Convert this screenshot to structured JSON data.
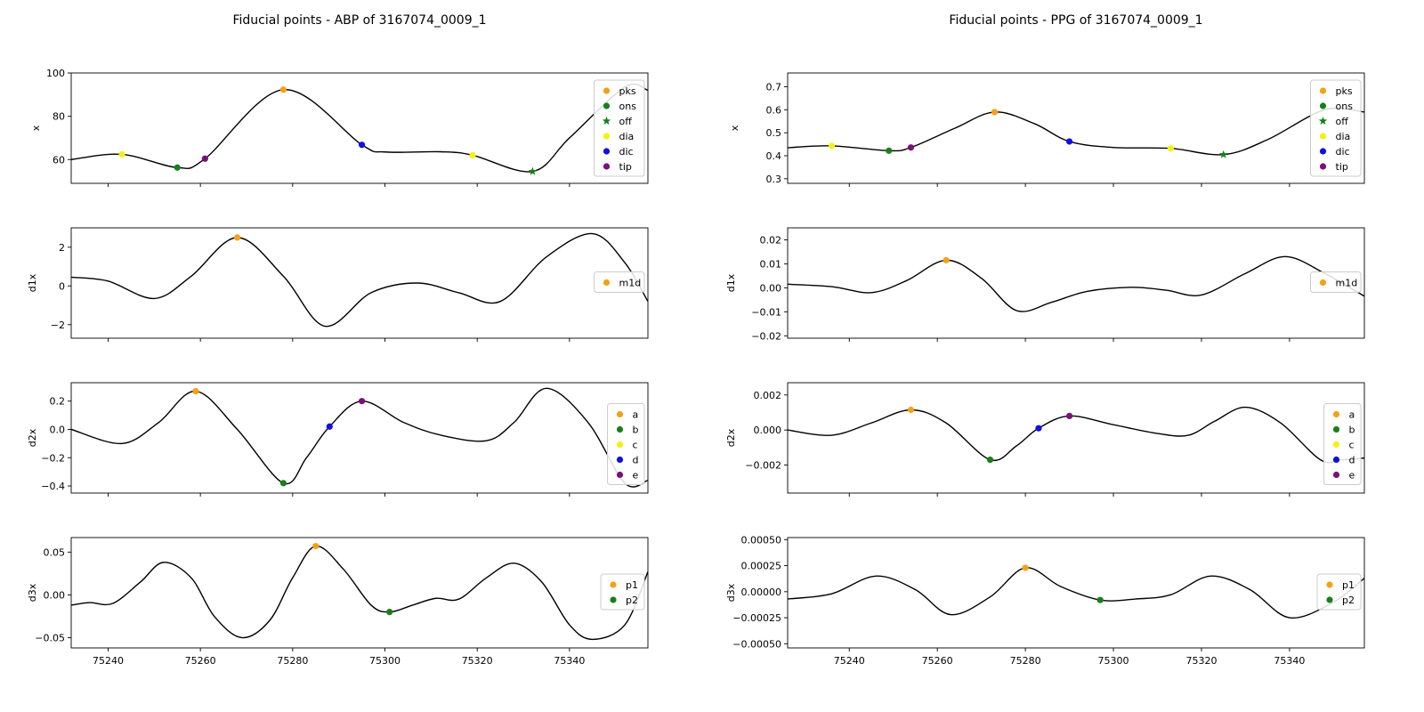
{
  "chart_data": [
    {
      "type": "line",
      "title": "Fiducial points - ABP of 3167074_0009_1",
      "ylabel": "x",
      "xlim": [
        75232,
        75357
      ],
      "ylim": [
        49,
        100
      ],
      "yticks": [
        60,
        80,
        100
      ],
      "xticks": [
        75240,
        75260,
        75280,
        75300,
        75320,
        75340
      ],
      "show_xticklabels": false,
      "curve": [
        [
          75232,
          60
        ],
        [
          75243,
          62.4
        ],
        [
          75255,
          56.3
        ],
        [
          75261,
          60.4
        ],
        [
          75278,
          92.3
        ],
        [
          75295,
          66.8
        ],
        [
          75300,
          63.5
        ],
        [
          75312,
          63.6
        ],
        [
          75319,
          62
        ],
        [
          75332,
          54.5
        ],
        [
          75340,
          70
        ],
        [
          75352,
          93.5
        ],
        [
          75357,
          92
        ]
      ],
      "points": [
        {
          "name": "pks",
          "color": "#f5a015",
          "marker": "circle",
          "x": 75278,
          "y": 92.3
        },
        {
          "name": "ons",
          "color": "#1a7f1a",
          "marker": "circle",
          "x": 75255,
          "y": 56.3
        },
        {
          "name": "off",
          "color": "#1a7f1a",
          "marker": "star",
          "x": 75332,
          "y": 54.5
        },
        {
          "name": "dia",
          "color": "#f2f212",
          "marker": "circle",
          "x": 75243,
          "y": 62.4
        },
        {
          "name": "dia",
          "color": "#f2f212",
          "marker": "circle",
          "x": 75319,
          "y": 62
        },
        {
          "name": "dic",
          "color": "#1010e0",
          "marker": "circle",
          "x": 75295,
          "y": 66.8
        },
        {
          "name": "tip",
          "color": "#7a107a",
          "marker": "circle",
          "x": 75261,
          "y": 60.4
        }
      ],
      "legend": [
        {
          "label": "pks",
          "color": "#f5a015",
          "marker": "circle"
        },
        {
          "label": "ons",
          "color": "#1a7f1a",
          "marker": "circle"
        },
        {
          "label": "off",
          "color": "#1a7f1a",
          "marker": "star"
        },
        {
          "label": "dia",
          "color": "#f2f212",
          "marker": "circle"
        },
        {
          "label": "dic",
          "color": "#1010e0",
          "marker": "circle"
        },
        {
          "label": "tip",
          "color": "#7a107a",
          "marker": "circle"
        }
      ]
    },
    {
      "type": "line",
      "title": "",
      "ylabel": "d1x",
      "xlim": [
        75232,
        75357
      ],
      "ylim": [
        -2.7,
        3
      ],
      "yticks": [
        -2,
        0,
        2
      ],
      "xticks": [
        75240,
        75260,
        75280,
        75300,
        75320,
        75340
      ],
      "show_xticklabels": false,
      "curve": [
        [
          75232,
          0.45
        ],
        [
          75240,
          0.25
        ],
        [
          75250,
          -0.65
        ],
        [
          75258,
          0.5
        ],
        [
          75268,
          2.5
        ],
        [
          75278,
          0.5
        ],
        [
          75287,
          -2.08
        ],
        [
          75297,
          -0.35
        ],
        [
          75307,
          0.15
        ],
        [
          75316,
          -0.35
        ],
        [
          75325,
          -0.8
        ],
        [
          75335,
          1.5
        ],
        [
          75345,
          2.7
        ],
        [
          75352,
          1.2
        ],
        [
          75357,
          -0.8
        ]
      ],
      "points": [
        {
          "name": "m1d",
          "color": "#f5a015",
          "marker": "circle",
          "x": 75268,
          "y": 2.5
        }
      ],
      "legend": [
        {
          "label": "m1d",
          "color": "#f5a015",
          "marker": "circle"
        }
      ]
    },
    {
      "type": "line",
      "title": "",
      "ylabel": "d2x",
      "xlim": [
        75232,
        75357
      ],
      "ylim": [
        -0.45,
        0.33
      ],
      "yticks": [
        -0.4,
        -0.2,
        0.0,
        0.2
      ],
      "xticks": [
        75240,
        75260,
        75280,
        75300,
        75320,
        75340
      ],
      "show_xticklabels": false,
      "curve": [
        [
          75232,
          0.0
        ],
        [
          75243,
          -0.1
        ],
        [
          75251,
          0.05
        ],
        [
          75259,
          0.27
        ],
        [
          75268,
          0.0
        ],
        [
          75278,
          -0.38
        ],
        [
          75283,
          -0.2
        ],
        [
          75288,
          0.02
        ],
        [
          75295,
          0.2
        ],
        [
          75304,
          0.05
        ],
        [
          75312,
          -0.04
        ],
        [
          75322,
          -0.08
        ],
        [
          75328,
          0.05
        ],
        [
          75335,
          0.29
        ],
        [
          75344,
          0.05
        ],
        [
          75352,
          -0.38
        ],
        [
          75357,
          -0.36
        ]
      ],
      "points": [
        {
          "name": "a",
          "color": "#f5a015",
          "marker": "circle",
          "x": 75259,
          "y": 0.27
        },
        {
          "name": "b",
          "color": "#1a7f1a",
          "marker": "circle",
          "x": 75278,
          "y": -0.38
        },
        {
          "name": "d",
          "color": "#1010e0",
          "marker": "circle",
          "x": 75288,
          "y": 0.02
        },
        {
          "name": "e",
          "color": "#7a107a",
          "marker": "circle",
          "x": 75295,
          "y": 0.2
        }
      ],
      "legend": [
        {
          "label": "a",
          "color": "#f5a015",
          "marker": "circle"
        },
        {
          "label": "b",
          "color": "#1a7f1a",
          "marker": "circle"
        },
        {
          "label": "c",
          "color": "#f2f212",
          "marker": "circle"
        },
        {
          "label": "d",
          "color": "#1010e0",
          "marker": "circle"
        },
        {
          "label": "e",
          "color": "#7a107a",
          "marker": "circle"
        }
      ]
    },
    {
      "type": "line",
      "title": "",
      "ylabel": "d3x",
      "xlim": [
        75232,
        75357
      ],
      "ylim": [
        -0.062,
        0.067
      ],
      "yticks": [
        -0.05,
        0.0,
        0.05
      ],
      "xticks": [
        75240,
        75260,
        75280,
        75300,
        75320,
        75340
      ],
      "show_xticklabels": true,
      "curve": [
        [
          75232,
          -0.012
        ],
        [
          75236,
          -0.009
        ],
        [
          75241,
          -0.01
        ],
        [
          75247,
          0.015
        ],
        [
          75252,
          0.038
        ],
        [
          75258,
          0.02
        ],
        [
          75263,
          -0.025
        ],
        [
          75269,
          -0.05
        ],
        [
          75275,
          -0.03
        ],
        [
          75280,
          0.02
        ],
        [
          75285,
          0.057
        ],
        [
          75291,
          0.03
        ],
        [
          75297,
          -0.012
        ],
        [
          75301,
          -0.02
        ],
        [
          75306,
          -0.012
        ],
        [
          75311,
          -0.004
        ],
        [
          75316,
          -0.005
        ],
        [
          75322,
          0.02
        ],
        [
          75328,
          0.037
        ],
        [
          75334,
          0.015
        ],
        [
          75340,
          -0.035
        ],
        [
          75345,
          -0.052
        ],
        [
          75352,
          -0.035
        ],
        [
          75357,
          0.027
        ]
      ],
      "points": [
        {
          "name": "p1",
          "color": "#f5a015",
          "marker": "circle",
          "x": 75285,
          "y": 0.057
        },
        {
          "name": "p2",
          "color": "#1a7f1a",
          "marker": "circle",
          "x": 75301,
          "y": -0.02
        }
      ],
      "legend": [
        {
          "label": "p1",
          "color": "#f5a015",
          "marker": "circle"
        },
        {
          "label": "p2",
          "color": "#1a7f1a",
          "marker": "circle"
        }
      ]
    },
    {
      "type": "line",
      "title": "Fiducial points - PPG of 3167074_0009_1",
      "ylabel": "x",
      "xlim": [
        75226,
        75357
      ],
      "ylim": [
        0.28,
        0.76
      ],
      "yticks": [
        0.3,
        0.4,
        0.5,
        0.6,
        0.7
      ],
      "xticks": [
        75240,
        75260,
        75280,
        75300,
        75320,
        75340
      ],
      "show_xticklabels": false,
      "curve": [
        [
          75226,
          0.435
        ],
        [
          75236,
          0.443
        ],
        [
          75249,
          0.422
        ],
        [
          75254,
          0.436
        ],
        [
          75264,
          0.52
        ],
        [
          75273,
          0.59
        ],
        [
          75282,
          0.54
        ],
        [
          75290,
          0.462
        ],
        [
          75300,
          0.436
        ],
        [
          75313,
          0.432
        ],
        [
          75325,
          0.405
        ],
        [
          75335,
          0.47
        ],
        [
          75348,
          0.6
        ],
        [
          75357,
          0.59
        ]
      ],
      "points": [
        {
          "name": "pks",
          "color": "#f5a015",
          "marker": "circle",
          "x": 75273,
          "y": 0.59
        },
        {
          "name": "ons",
          "color": "#1a7f1a",
          "marker": "circle",
          "x": 75249,
          "y": 0.422
        },
        {
          "name": "off",
          "color": "#1a7f1a",
          "marker": "star",
          "x": 75325,
          "y": 0.405
        },
        {
          "name": "dia",
          "color": "#f2f212",
          "marker": "circle",
          "x": 75236,
          "y": 0.443
        },
        {
          "name": "dia",
          "color": "#f2f212",
          "marker": "circle",
          "x": 75313,
          "y": 0.432
        },
        {
          "name": "dic",
          "color": "#1010e0",
          "marker": "circle",
          "x": 75290,
          "y": 0.462
        },
        {
          "name": "tip",
          "color": "#7a107a",
          "marker": "circle",
          "x": 75254,
          "y": 0.436
        }
      ],
      "legend": [
        {
          "label": "pks",
          "color": "#f5a015",
          "marker": "circle"
        },
        {
          "label": "ons",
          "color": "#1a7f1a",
          "marker": "circle"
        },
        {
          "label": "off",
          "color": "#1a7f1a",
          "marker": "star"
        },
        {
          "label": "dia",
          "color": "#f2f212",
          "marker": "circle"
        },
        {
          "label": "dic",
          "color": "#1010e0",
          "marker": "circle"
        },
        {
          "label": "tip",
          "color": "#7a107a",
          "marker": "circle"
        }
      ]
    },
    {
      "type": "line",
      "title": "",
      "ylabel": "d1x",
      "xlim": [
        75226,
        75357
      ],
      "ylim": [
        -0.021,
        0.025
      ],
      "yticks": [
        -0.02,
        -0.01,
        0.0,
        0.01,
        0.02
      ],
      "xticks": [
        75240,
        75260,
        75280,
        75300,
        75320,
        75340
      ],
      "show_xticklabels": false,
      "curve": [
        [
          75226,
          0.0015
        ],
        [
          75236,
          0.0005
        ],
        [
          75245,
          -0.002
        ],
        [
          75253,
          0.003
        ],
        [
          75262,
          0.0115
        ],
        [
          75270,
          0.004
        ],
        [
          75278,
          -0.0095
        ],
        [
          75286,
          -0.006
        ],
        [
          75294,
          -0.0015
        ],
        [
          75304,
          0.0002
        ],
        [
          75312,
          -0.001
        ],
        [
          75320,
          -0.003
        ],
        [
          75330,
          0.006
        ],
        [
          75339,
          0.013
        ],
        [
          75348,
          0.006
        ],
        [
          75357,
          -0.0035
        ]
      ],
      "points": [
        {
          "name": "m1d",
          "color": "#f5a015",
          "marker": "circle",
          "x": 75262,
          "y": 0.0115
        }
      ],
      "legend": [
        {
          "label": "m1d",
          "color": "#f5a015",
          "marker": "circle"
        }
      ]
    },
    {
      "type": "line",
      "title": "",
      "ylabel": "d2x",
      "xlim": [
        75226,
        75357
      ],
      "ylim": [
        -0.0036,
        0.0027
      ],
      "yticks": [
        -0.002,
        0.0,
        0.002
      ],
      "xticks": [
        75240,
        75260,
        75280,
        75300,
        75320,
        75340
      ],
      "show_xticklabels": false,
      "curve": [
        [
          75226,
          0.0
        ],
        [
          75236,
          -0.0003
        ],
        [
          75245,
          0.0004
        ],
        [
          75254,
          0.00115
        ],
        [
          75262,
          0.0004
        ],
        [
          75272,
          -0.0017
        ],
        [
          75278,
          -0.0009
        ],
        [
          75283,
          0.0001
        ],
        [
          75290,
          0.0008
        ],
        [
          75300,
          0.0003
        ],
        [
          75310,
          -0.0002
        ],
        [
          75317,
          -0.0003
        ],
        [
          75323,
          0.0005
        ],
        [
          75330,
          0.0013
        ],
        [
          75338,
          0.0004
        ],
        [
          75347,
          -0.0017
        ],
        [
          75352,
          -0.0017
        ],
        [
          75357,
          -0.0016
        ]
      ],
      "points": [
        {
          "name": "a",
          "color": "#f5a015",
          "marker": "circle",
          "x": 75254,
          "y": 0.00115
        },
        {
          "name": "b",
          "color": "#1a7f1a",
          "marker": "circle",
          "x": 75272,
          "y": -0.0017
        },
        {
          "name": "d",
          "color": "#1010e0",
          "marker": "circle",
          "x": 75283,
          "y": 0.0001
        },
        {
          "name": "e",
          "color": "#7a107a",
          "marker": "circle",
          "x": 75290,
          "y": 0.0008
        }
      ],
      "legend": [
        {
          "label": "a",
          "color": "#f5a015",
          "marker": "circle"
        },
        {
          "label": "b",
          "color": "#1a7f1a",
          "marker": "circle"
        },
        {
          "label": "c",
          "color": "#f2f212",
          "marker": "circle"
        },
        {
          "label": "d",
          "color": "#1010e0",
          "marker": "circle"
        },
        {
          "label": "e",
          "color": "#7a107a",
          "marker": "circle"
        }
      ]
    },
    {
      "type": "line",
      "title": "",
      "ylabel": "d3x",
      "xlim": [
        75226,
        75357
      ],
      "ylim": [
        -0.00054,
        0.00052
      ],
      "yticks": [
        -0.0005,
        -0.00025,
        0.0,
        0.00025,
        0.0005
      ],
      "ytick_labels": [
        "−0.00050",
        "−0.00025",
        "0.00000",
        "0.00025",
        "0.00050"
      ],
      "xticks": [
        75240,
        75260,
        75280,
        75300,
        75320,
        75340
      ],
      "show_xticklabels": true,
      "curve": [
        [
          75226,
          -7e-05
        ],
        [
          75236,
          -2e-05
        ],
        [
          75246,
          0.00015
        ],
        [
          75255,
          2e-05
        ],
        [
          75263,
          -0.00022
        ],
        [
          75272,
          -5e-05
        ],
        [
          75280,
          0.00023
        ],
        [
          75288,
          5e-05
        ],
        [
          75297,
          -8e-05
        ],
        [
          75305,
          -7e-05
        ],
        [
          75313,
          -3e-05
        ],
        [
          75322,
          0.00015
        ],
        [
          75331,
          2e-05
        ],
        [
          75340,
          -0.00025
        ],
        [
          75350,
          -0.0001
        ],
        [
          75357,
          0.00013
        ]
      ],
      "points": [
        {
          "name": "p1",
          "color": "#f5a015",
          "marker": "circle",
          "x": 75280,
          "y": 0.00023
        },
        {
          "name": "p2",
          "color": "#1a7f1a",
          "marker": "circle",
          "x": 75297,
          "y": -8e-05
        }
      ],
      "legend": [
        {
          "label": "p1",
          "color": "#f5a015",
          "marker": "circle"
        },
        {
          "label": "p2",
          "color": "#1a7f1a",
          "marker": "circle"
        }
      ]
    }
  ]
}
